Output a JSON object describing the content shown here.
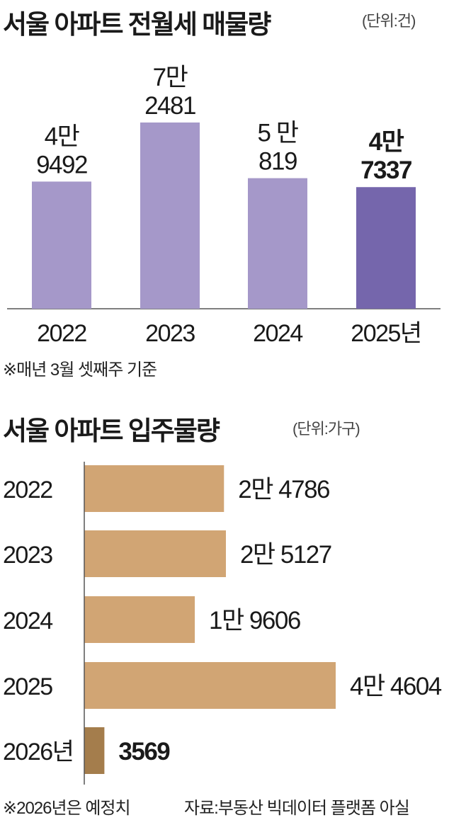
{
  "chart_data": [
    {
      "type": "bar",
      "title": "서울 아파트 전월세 매물량",
      "unit": "(단위:건)",
      "categories": [
        "2022",
        "2023",
        "2024",
        "2025년"
      ],
      "values": [
        49492,
        72481,
        50819,
        47337
      ],
      "value_labels": [
        [
          "4만",
          "9492"
        ],
        [
          "7만",
          "2481"
        ],
        [
          "5 만",
          "819"
        ],
        [
          "4만",
          "7337"
        ]
      ],
      "highlight_index": 3,
      "colors": {
        "bar": "#a598c9",
        "highlight": "#7566ac",
        "axis": "#555555"
      },
      "note": "※매년 3월 셋째주 기준"
    },
    {
      "type": "bar",
      "orientation": "horizontal",
      "title": "서울 아파트 입주물량",
      "unit": "(단위:가구)",
      "categories": [
        "2022",
        "2023",
        "2024",
        "2025",
        "2026년"
      ],
      "values": [
        24786,
        25127,
        19606,
        44604,
        3569
      ],
      "value_labels": [
        "2만 4786",
        "2만 5127",
        "1만 9606",
        "4만 4604",
        "3569"
      ],
      "highlight_index": 4,
      "colors": {
        "bar": "#d1a574",
        "highlight": "#a47d4c",
        "axis": "#555555"
      },
      "note": "※2026년은 예정치",
      "source": "자료:부동산 빅데이터 플랫폼 아실"
    }
  ]
}
